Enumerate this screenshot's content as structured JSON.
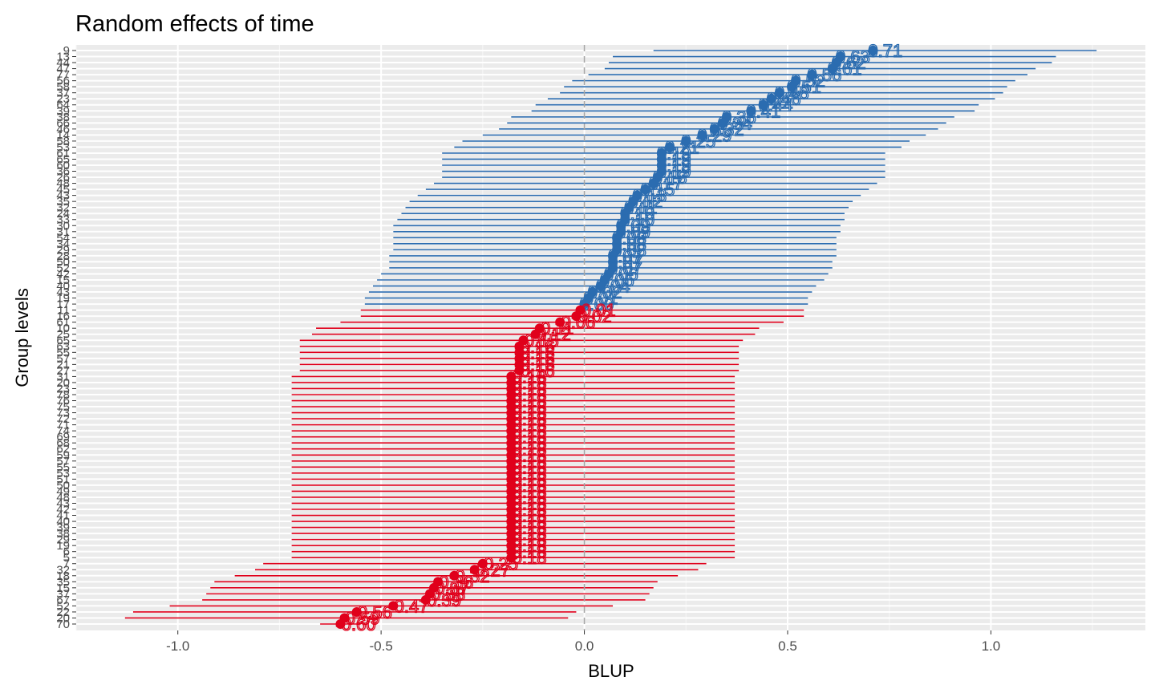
{
  "chart_data": {
    "type": "dot-interval",
    "title": "Random effects of  time",
    "xlabel": "BLUP",
    "ylabel": "Group levels",
    "xlim": [
      -1.25,
      1.38
    ],
    "xticks": [
      -1.0,
      -0.5,
      0.0,
      0.5,
      1.0
    ],
    "xtick_labels": [
      "-1.0",
      "-0.5",
      "0.0",
      "0.5",
      "1.0"
    ],
    "grid": true,
    "legend": "none",
    "reference_line": 0.0,
    "colors": {
      "positive": "#2b6cb0",
      "negative": "#e0001b",
      "panel": "#ebebeb",
      "reference": "#a6a6a6"
    },
    "points": [
      {
        "level": "9",
        "blup": 0.71,
        "lower": 0.17,
        "upper": 1.26
      },
      {
        "level": "13",
        "blup": 0.63,
        "lower": 0.07,
        "upper": 1.16
      },
      {
        "level": "44",
        "blup": 0.62,
        "lower": 0.06,
        "upper": 1.15
      },
      {
        "level": "47",
        "blup": 0.61,
        "lower": 0.05,
        "upper": 1.11
      },
      {
        "level": "77",
        "blup": 0.56,
        "lower": 0.01,
        "upper": 1.09
      },
      {
        "level": "56",
        "blup": 0.52,
        "lower": -0.03,
        "upper": 1.06
      },
      {
        "level": "58",
        "blup": 0.51,
        "lower": -0.05,
        "upper": 1.04
      },
      {
        "level": "37",
        "blup": 0.48,
        "lower": -0.06,
        "upper": 1.03
      },
      {
        "level": "23",
        "blup": 0.46,
        "lower": -0.09,
        "upper": 1.01
      },
      {
        "level": "64",
        "blup": 0.44,
        "lower": -0.12,
        "upper": 0.97
      },
      {
        "level": "39",
        "blup": 0.41,
        "lower": -0.13,
        "upper": 0.96
      },
      {
        "level": "38",
        "blup": 0.35,
        "lower": -0.18,
        "upper": 0.91
      },
      {
        "level": "66",
        "blup": 0.34,
        "lower": -0.19,
        "upper": 0.89
      },
      {
        "level": "46",
        "blup": 0.32,
        "lower": -0.21,
        "upper": 0.87
      },
      {
        "level": "14",
        "blup": 0.29,
        "lower": -0.25,
        "upper": 0.84
      },
      {
        "level": "58",
        "blup": 0.25,
        "lower": -0.3,
        "upper": 0.8
      },
      {
        "level": "53",
        "blup": 0.21,
        "lower": -0.32,
        "upper": 0.78
      },
      {
        "level": "61",
        "blup": 0.19,
        "lower": -0.35,
        "upper": 0.74
      },
      {
        "level": "65",
        "blup": 0.19,
        "lower": -0.35,
        "upper": 0.74
      },
      {
        "level": "60",
        "blup": 0.19,
        "lower": -0.35,
        "upper": 0.74
      },
      {
        "level": "36",
        "blup": 0.19,
        "lower": -0.35,
        "upper": 0.74
      },
      {
        "level": "26",
        "blup": 0.18,
        "lower": -0.35,
        "upper": 0.74
      },
      {
        "level": "48",
        "blup": 0.17,
        "lower": -0.37,
        "upper": 0.72
      },
      {
        "level": "45",
        "blup": 0.15,
        "lower": -0.39,
        "upper": 0.7
      },
      {
        "level": "43",
        "blup": 0.13,
        "lower": -0.41,
        "upper": 0.68
      },
      {
        "level": "35",
        "blup": 0.12,
        "lower": -0.43,
        "upper": 0.66
      },
      {
        "level": "32",
        "blup": 0.11,
        "lower": -0.44,
        "upper": 0.65
      },
      {
        "level": "24",
        "blup": 0.1,
        "lower": -0.45,
        "upper": 0.64
      },
      {
        "level": "33",
        "blup": 0.1,
        "lower": -0.46,
        "upper": 0.64
      },
      {
        "level": "30",
        "blup": 0.09,
        "lower": -0.47,
        "upper": 0.63
      },
      {
        "level": "31",
        "blup": 0.09,
        "lower": -0.47,
        "upper": 0.63
      },
      {
        "level": "54",
        "blup": 0.08,
        "lower": -0.47,
        "upper": 0.62
      },
      {
        "level": "34",
        "blup": 0.08,
        "lower": -0.47,
        "upper": 0.62
      },
      {
        "level": "29",
        "blup": 0.08,
        "lower": -0.47,
        "upper": 0.62
      },
      {
        "level": "28",
        "blup": 0.07,
        "lower": -0.48,
        "upper": 0.62
      },
      {
        "level": "50",
        "blup": 0.07,
        "lower": -0.48,
        "upper": 0.61
      },
      {
        "level": "52",
        "blup": 0.07,
        "lower": -0.48,
        "upper": 0.61
      },
      {
        "level": "42",
        "blup": 0.06,
        "lower": -0.5,
        "upper": 0.6
      },
      {
        "level": "15",
        "blup": 0.05,
        "lower": -0.51,
        "upper": 0.59
      },
      {
        "level": "40",
        "blup": 0.04,
        "lower": -0.52,
        "upper": 0.57
      },
      {
        "level": "43",
        "blup": 0.02,
        "lower": -0.53,
        "upper": 0.56
      },
      {
        "level": "19",
        "blup": 0.01,
        "lower": -0.54,
        "upper": 0.55
      },
      {
        "level": "17",
        "blup": 0.0,
        "lower": -0.54,
        "upper": 0.55
      },
      {
        "level": "11",
        "blup": -0.01,
        "lower": -0.55,
        "upper": 0.54
      },
      {
        "level": "16",
        "blup": -0.02,
        "lower": -0.55,
        "upper": 0.54
      },
      {
        "level": "61",
        "blup": -0.06,
        "lower": -0.6,
        "upper": 0.49
      },
      {
        "level": "10",
        "blup": -0.11,
        "lower": -0.66,
        "upper": 0.43
      },
      {
        "level": "25",
        "blup": -0.12,
        "lower": -0.67,
        "upper": 0.42
      },
      {
        "level": "65",
        "blup": -0.15,
        "lower": -0.7,
        "upper": 0.39
      },
      {
        "level": "63",
        "blup": -0.16,
        "lower": -0.7,
        "upper": 0.38
      },
      {
        "level": "55",
        "blup": -0.16,
        "lower": -0.7,
        "upper": 0.38
      },
      {
        "level": "57",
        "blup": -0.16,
        "lower": -0.7,
        "upper": 0.38
      },
      {
        "level": "21",
        "blup": -0.16,
        "lower": -0.7,
        "upper": 0.38
      },
      {
        "level": "27",
        "blup": -0.16,
        "lower": -0.7,
        "upper": 0.38
      },
      {
        "level": "31",
        "blup": -0.18,
        "lower": -0.72,
        "upper": 0.37
      },
      {
        "level": "20",
        "blup": -0.18,
        "lower": -0.72,
        "upper": 0.37
      },
      {
        "level": "23",
        "blup": -0.18,
        "lower": -0.72,
        "upper": 0.37
      },
      {
        "level": "78",
        "blup": -0.18,
        "lower": -0.72,
        "upper": 0.37
      },
      {
        "level": "76",
        "blup": -0.18,
        "lower": -0.72,
        "upper": 0.37
      },
      {
        "level": "75",
        "blup": -0.18,
        "lower": -0.72,
        "upper": 0.37
      },
      {
        "level": "73",
        "blup": -0.18,
        "lower": -0.72,
        "upper": 0.37
      },
      {
        "level": "72",
        "blup": -0.18,
        "lower": -0.72,
        "upper": 0.37
      },
      {
        "level": "71",
        "blup": -0.18,
        "lower": -0.72,
        "upper": 0.37
      },
      {
        "level": "74",
        "blup": -0.18,
        "lower": -0.72,
        "upper": 0.37
      },
      {
        "level": "69",
        "blup": -0.18,
        "lower": -0.72,
        "upper": 0.37
      },
      {
        "level": "68",
        "blup": -0.18,
        "lower": -0.72,
        "upper": 0.37
      },
      {
        "level": "62",
        "blup": -0.18,
        "lower": -0.72,
        "upper": 0.37
      },
      {
        "level": "59",
        "blup": -0.18,
        "lower": -0.72,
        "upper": 0.37
      },
      {
        "level": "57",
        "blup": -0.18,
        "lower": -0.72,
        "upper": 0.37
      },
      {
        "level": "55",
        "blup": -0.18,
        "lower": -0.72,
        "upper": 0.37
      },
      {
        "level": "53",
        "blup": -0.18,
        "lower": -0.72,
        "upper": 0.37
      },
      {
        "level": "51",
        "blup": -0.18,
        "lower": -0.72,
        "upper": 0.37
      },
      {
        "level": "50",
        "blup": -0.18,
        "lower": -0.72,
        "upper": 0.37
      },
      {
        "level": "49",
        "blup": -0.18,
        "lower": -0.72,
        "upper": 0.37
      },
      {
        "level": "48",
        "blup": -0.18,
        "lower": -0.72,
        "upper": 0.37
      },
      {
        "level": "43",
        "blup": -0.18,
        "lower": -0.72,
        "upper": 0.37
      },
      {
        "level": "42",
        "blup": -0.18,
        "lower": -0.72,
        "upper": 0.37
      },
      {
        "level": "41",
        "blup": -0.18,
        "lower": -0.72,
        "upper": 0.37
      },
      {
        "level": "40",
        "blup": -0.18,
        "lower": -0.72,
        "upper": 0.37
      },
      {
        "level": "39",
        "blup": -0.18,
        "lower": -0.72,
        "upper": 0.37
      },
      {
        "level": "38",
        "blup": -0.18,
        "lower": -0.72,
        "upper": 0.37
      },
      {
        "level": "29",
        "blup": -0.18,
        "lower": -0.72,
        "upper": 0.37
      },
      {
        "level": "19",
        "blup": -0.18,
        "lower": -0.72,
        "upper": 0.37
      },
      {
        "level": "6",
        "blup": -0.18,
        "lower": -0.72,
        "upper": 0.37
      },
      {
        "level": "5",
        "blup": -0.18,
        "lower": -0.72,
        "upper": 0.37
      },
      {
        "level": "7",
        "blup": -0.25,
        "lower": -0.79,
        "upper": 0.3
      },
      {
        "level": "32",
        "blup": -0.27,
        "lower": -0.81,
        "upper": 0.28
      },
      {
        "level": "18",
        "blup": -0.32,
        "lower": -0.86,
        "upper": 0.23
      },
      {
        "level": "35",
        "blup": -0.36,
        "lower": -0.91,
        "upper": 0.18
      },
      {
        "level": "15",
        "blup": -0.37,
        "lower": -0.92,
        "upper": 0.17
      },
      {
        "level": "37",
        "blup": -0.38,
        "lower": -0.93,
        "upper": 0.16
      },
      {
        "level": "67",
        "blup": -0.39,
        "lower": -0.94,
        "upper": 0.15
      },
      {
        "level": "52",
        "blup": -0.47,
        "lower": -1.02,
        "upper": 0.07
      },
      {
        "level": "22",
        "blup": -0.56,
        "lower": -1.11,
        "upper": -0.02
      },
      {
        "level": "20",
        "blup": -0.59,
        "lower": -1.13,
        "upper": -0.04
      },
      {
        "level": "70",
        "blup": -0.6,
        "lower": -0.65,
        "upper": -0.55
      }
    ]
  }
}
